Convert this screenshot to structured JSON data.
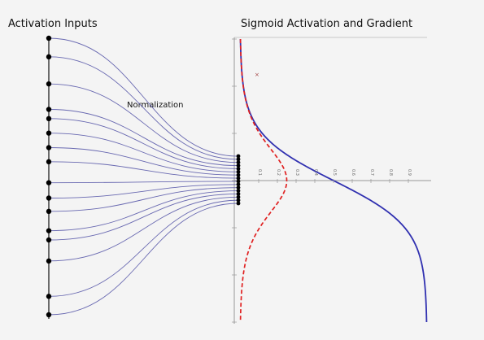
{
  "titles": {
    "left": "Activation Inputs",
    "right": "Sigmoid Activation and Gradient"
  },
  "annotation": "Normalization",
  "colors": {
    "node": "#000000",
    "connector": "#5a5aaa",
    "sigmoid": "#3030b0",
    "gradient": "#e02020",
    "axis": "#999999"
  },
  "inputs": {
    "node_count": 16
  },
  "chart_data": {
    "type": "line",
    "title": "Sigmoid Activation and Gradient",
    "series": [
      {
        "style": "solid",
        "color": "#3030b0",
        "function": "sigmoid"
      },
      {
        "style": "dashed",
        "color": "#e02020",
        "function": "sigmoid-gradient"
      }
    ],
    "value_axis_range": [
      0,
      1
    ],
    "value_ticks": [
      "0.1",
      "0.2",
      "0.3",
      "0.4",
      "0.5",
      "0.6",
      "0.7",
      "0.8",
      "0.9"
    ],
    "grid": false
  }
}
